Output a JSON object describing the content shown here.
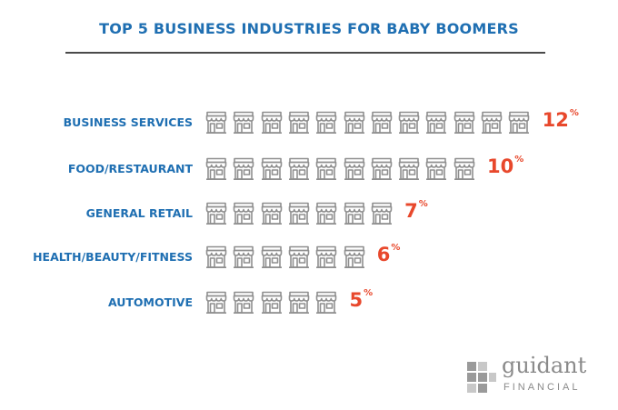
{
  "title": "TOP 5 BUSINESS INDUSTRIES FOR BABY BOOMERS",
  "colors": {
    "title": "#1f6fb2",
    "label": "#1f6fb2",
    "value": "#e8482c",
    "icon": "#8f8f8f"
  },
  "icon": "storefront-icon",
  "brand": {
    "name": "guidant",
    "sub": "FINANCIAL"
  },
  "chart_data": {
    "type": "bar",
    "categories": [
      "BUSINESS SERVICES",
      "FOOD/RESTAURANT",
      "GENERAL RETAIL",
      "HEALTH/BEAUTY/FITNESS",
      "AUTOMOTIVE"
    ],
    "values": [
      12,
      10,
      7,
      6,
      5
    ],
    "value_labels": [
      "12",
      "10",
      "7",
      "6",
      "5"
    ],
    "unit": "%",
    "title": "TOP 5 BUSINESS INDUSTRIES FOR BABY BOOMERS",
    "xlabel": "",
    "ylabel": ""
  }
}
